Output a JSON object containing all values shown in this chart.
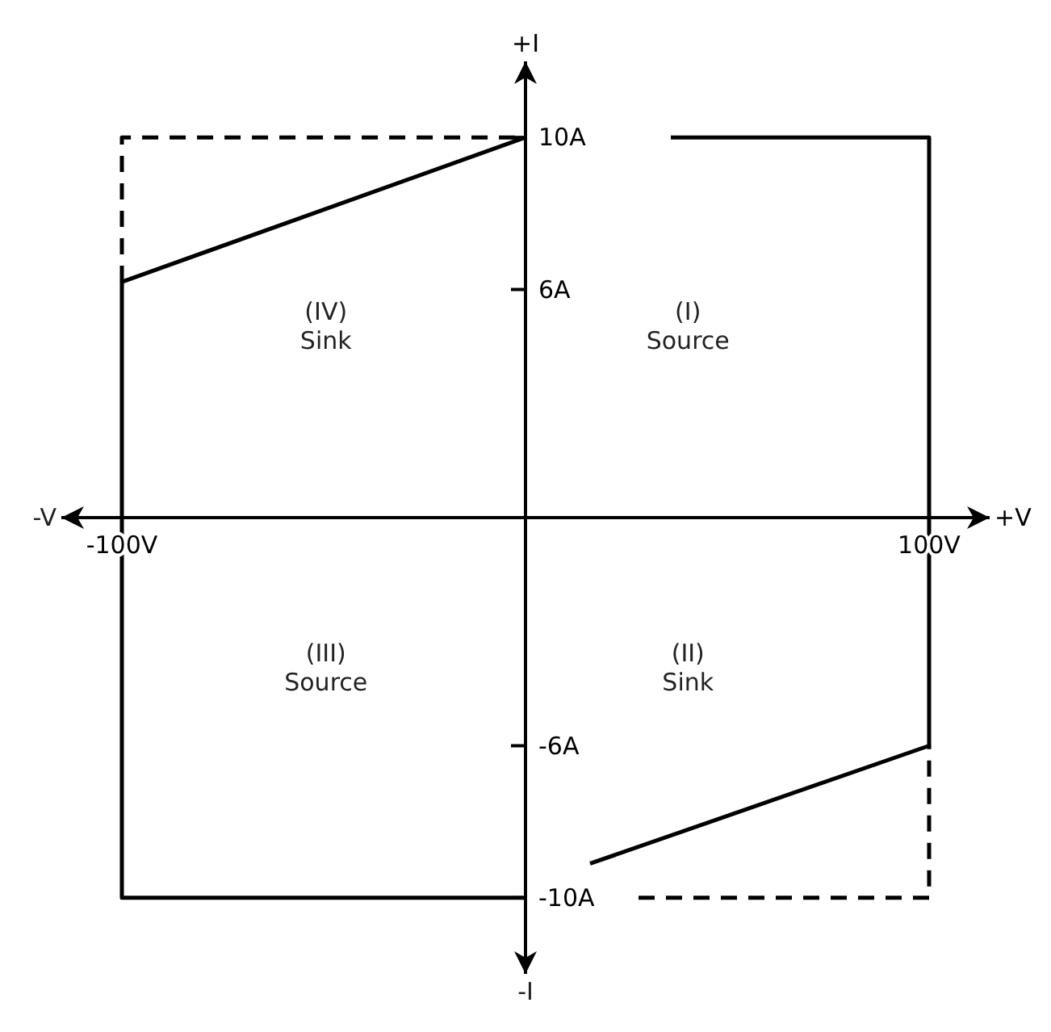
{
  "chart_data": {
    "type": "line",
    "xlabel": "+V",
    "ylabel": "+I",
    "xlim": [
      -115,
      115
    ],
    "ylim": [
      -12,
      12
    ],
    "xticks": [
      {
        "value": -100,
        "label": "-100V"
      },
      {
        "value": 100,
        "label": "100V"
      }
    ],
    "yticks": [
      {
        "value": 10,
        "label": "10A"
      },
      {
        "value": 6,
        "label": "6A"
      },
      {
        "value": -6,
        "label": "-6A"
      },
      {
        "value": -10,
        "label": "-10A"
      }
    ],
    "marker": "none",
    "series": [
      {
        "color": "#000000",
        "line_style": "solid",
        "x": [
          16,
          100,
          100,
          36
        ],
        "values": [
          -9.1,
          -6,
          10,
          10
        ]
      },
      {
        "color": "#000000",
        "line_style": "solid",
        "x": [
          0,
          -100,
          -100,
          0
        ],
        "values": [
          10,
          6.2,
          -10,
          -10
        ]
      },
      {
        "color": "#000000",
        "line_style": "dashed",
        "x": [
          -100,
          -100,
          0
        ],
        "values": [
          6.2,
          10,
          10
        ]
      },
      {
        "color": "#000000",
        "line_style": "dashed",
        "x": [
          28,
          100,
          100
        ],
        "values": [
          -10,
          -10,
          -6
        ]
      }
    ],
    "annotations": [
      "-V",
      "-I",
      "(IV)\nSink",
      "(I)\nSource",
      "(III)\nSource",
      "(II)\nSink"
    ]
  }
}
